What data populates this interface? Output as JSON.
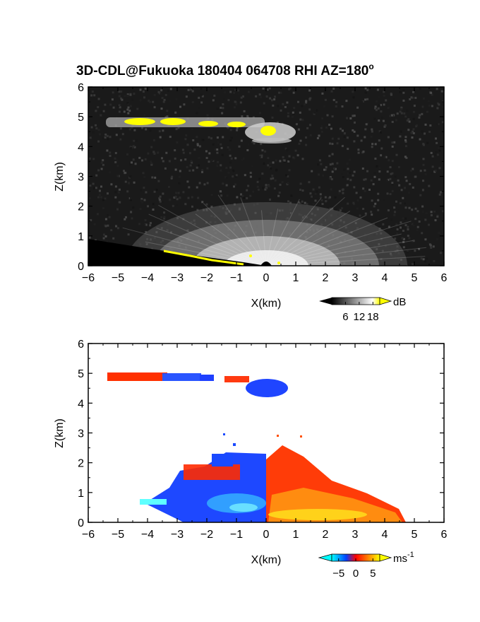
{
  "title": "3D-CDL@Fukuoka 180404 064708 RHI AZ=180",
  "title_degree_mark": "o",
  "chart_data": [
    {
      "type": "heatmap",
      "name": "reflectivity",
      "xlabel": "X(km)",
      "ylabel": "Z(km)",
      "xlim": [
        -6,
        6
      ],
      "ylim": [
        0,
        6
      ],
      "xticks": [
        "-6",
        "-5",
        "-4",
        "-3",
        "-2",
        "-1",
        "0",
        "1",
        "2",
        "3",
        "4",
        "5",
        "6"
      ],
      "yticks": [
        "0",
        "1",
        "2",
        "3",
        "4",
        "5",
        "6"
      ],
      "colorbar": {
        "unit": "dB",
        "ticks": [
          "6",
          "12",
          "18"
        ],
        "range": [
          0,
          21
        ],
        "colors": [
          "#000000",
          "#ffffff",
          "#ffff00"
        ]
      },
      "background": "#1a1a1a",
      "features": [
        {
          "label": "cloud layer",
          "x_range": [
            -5.4,
            0.9
          ],
          "z": 4.8,
          "max_dB": 18
        },
        {
          "label": "cloud blob",
          "x": 0.1,
          "z": 4.5,
          "max_dB": 18
        },
        {
          "label": "boundary layer echo",
          "x_range": [
            -4.5,
            4.5
          ],
          "z_top": 2.0,
          "max_dB": 14
        }
      ]
    },
    {
      "type": "heatmap",
      "name": "doppler velocity",
      "xlabel": "X(km)",
      "ylabel": "Z(km)",
      "xlim": [
        -6,
        6
      ],
      "ylim": [
        0,
        6
      ],
      "xticks": [
        "-6",
        "-5",
        "-4",
        "-3",
        "-2",
        "-1",
        "0",
        "1",
        "2",
        "3",
        "4",
        "5",
        "6"
      ],
      "yticks": [
        "0",
        "1",
        "2",
        "3",
        "4",
        "5",
        "6"
      ],
      "colorbar": {
        "unit": "ms",
        "unit_exponent": "-1",
        "ticks": [
          "-5",
          "0",
          "5"
        ],
        "range": [
          -7,
          7
        ],
        "colors": [
          "#00ffff",
          "#0040ff",
          "#ff0000",
          "#ffff00"
        ]
      },
      "background": "#ffffff",
      "features": [
        {
          "label": "cloud layer",
          "x_range": [
            -5.5,
            0.8
          ],
          "z": 4.8,
          "velocity": "mixed"
        },
        {
          "label": "negative velocity region",
          "x_range": [
            -4.3,
            0.0
          ],
          "z_top": 1.9,
          "velocity_ms": -5
        },
        {
          "label": "positive velocity region",
          "x_range": [
            0.0,
            4.6
          ],
          "z_top": 2.2,
          "velocity_ms": 5
        }
      ]
    }
  ]
}
